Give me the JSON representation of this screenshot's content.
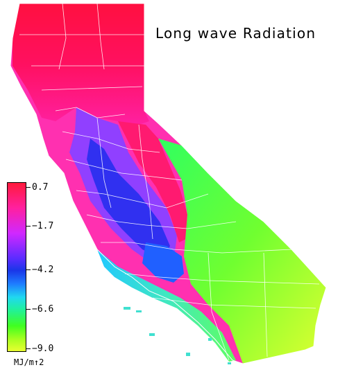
{
  "title": "Long wave Radiation",
  "legend": {
    "ticks": [
      "0.7",
      "−1.7",
      "−4.2",
      "−6.6",
      "−9.0"
    ],
    "unit": "MJ/m↑2",
    "colors": [
      "#ff1a3c",
      "#ff20a0",
      "#d028ff",
      "#1a36e8",
      "#20d8f0",
      "#20f0a0",
      "#40ff20",
      "#e8ff30"
    ]
  }
}
